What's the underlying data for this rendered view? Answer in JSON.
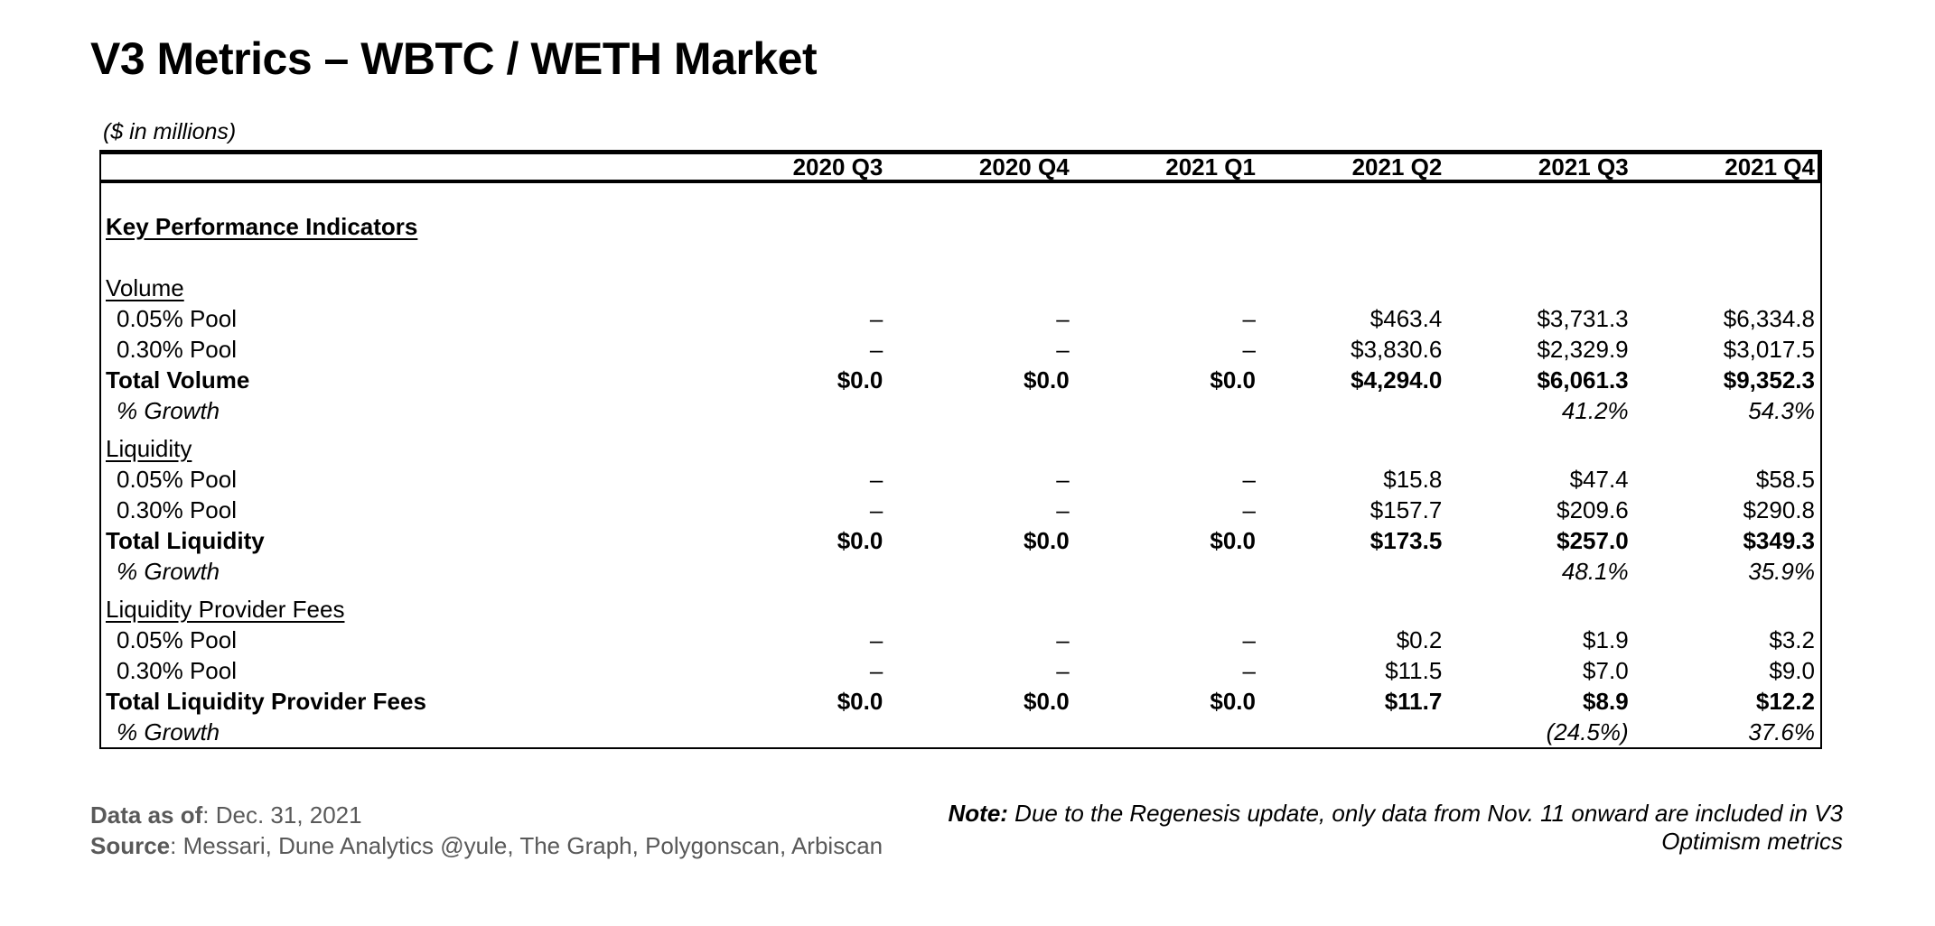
{
  "title": "V3 Metrics – WBTC / WETH Market",
  "table": {
    "units_label": "($ in millions)",
    "columns": [
      "2020 Q3",
      "2020 Q4",
      "2021 Q1",
      "2021 Q2",
      "2021 Q3",
      "2021 Q4"
    ],
    "kpi_heading": "Key Performance Indicators",
    "sections": [
      {
        "name": "Volume",
        "rows": [
          {
            "label": "0.05% Pool",
            "style": "indent",
            "values": [
              "–",
              "–",
              "–",
              "$463.4",
              "$3,731.3",
              "$6,334.8"
            ]
          },
          {
            "label": "0.30% Pool",
            "style": "indent",
            "values": [
              "–",
              "–",
              "–",
              "$3,830.6",
              "$2,329.9",
              "$3,017.5"
            ]
          },
          {
            "label": "Total Volume",
            "style": "total",
            "values": [
              "$0.0",
              "$0.0",
              "$0.0",
              "$4,294.0",
              "$6,061.3",
              "$9,352.3"
            ]
          },
          {
            "label": "% Growth",
            "style": "growth",
            "values": [
              "",
              "",
              "",
              "",
              "41.2%",
              "54.3%"
            ]
          }
        ]
      },
      {
        "name": "Liquidity",
        "rows": [
          {
            "label": "0.05% Pool",
            "style": "indent",
            "values": [
              "–",
              "–",
              "–",
              "$15.8",
              "$47.4",
              "$58.5"
            ]
          },
          {
            "label": "0.30% Pool",
            "style": "indent",
            "values": [
              "–",
              "–",
              "–",
              "$157.7",
              "$209.6",
              "$290.8"
            ]
          },
          {
            "label": "Total Liquidity",
            "style": "total",
            "values": [
              "$0.0",
              "$0.0",
              "$0.0",
              "$173.5",
              "$257.0",
              "$349.3"
            ]
          },
          {
            "label": "% Growth",
            "style": "growth",
            "values": [
              "",
              "",
              "",
              "",
              "48.1%",
              "35.9%"
            ]
          }
        ]
      },
      {
        "name": "Liquidity Provider Fees",
        "rows": [
          {
            "label": "0.05% Pool",
            "style": "indent",
            "values": [
              "–",
              "–",
              "–",
              "$0.2",
              "$1.9",
              "$3.2"
            ]
          },
          {
            "label": "0.30% Pool",
            "style": "indent",
            "values": [
              "–",
              "–",
              "–",
              "$11.5",
              "$7.0",
              "$9.0"
            ]
          },
          {
            "label": "Total Liquidity Provider Fees",
            "style": "total",
            "values": [
              "$0.0",
              "$0.0",
              "$0.0",
              "$11.7",
              "$8.9",
              "$12.2"
            ]
          },
          {
            "label": "% Growth",
            "style": "growth",
            "values": [
              "",
              "",
              "",
              "",
              "(24.5%)",
              "37.6%"
            ]
          }
        ]
      }
    ]
  },
  "footer": {
    "data_as_of_label": "Data as of",
    "data_as_of_value": ": Dec. 31, 2021",
    "source_label": "Source",
    "source_value": ": Messari, Dune Analytics @yule, The Graph, Polygonscan, Arbiscan",
    "note_label": "Note:",
    "note_text": " Due to the Regenesis update, only data from Nov. 11 onward are included in V3 Optimism metrics"
  },
  "colors": {
    "text": "#000000",
    "muted_text": "#595959",
    "border": "#000000",
    "background": "#ffffff"
  }
}
